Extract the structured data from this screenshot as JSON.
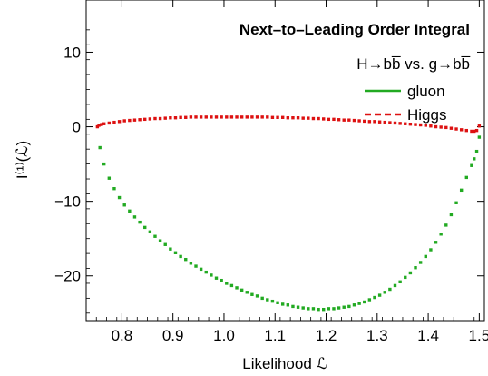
{
  "chart_data": {
    "type": "scatter",
    "title": "Next–to–Leading Order Integral",
    "legend_title": "H→bb̅ vs. g→bb̅",
    "legend_placement": "top-right",
    "xlabel": "Likelihood ℒ",
    "ylabel": "I⁽¹⁾(ℒ)",
    "xlim": [
      0.73,
      1.51
    ],
    "ylim": [
      -26,
      17
    ],
    "x_ticks": [
      "0.8",
      "0.9",
      "1.0",
      "1.1",
      "1.2",
      "1.3",
      "1.4",
      "1.5"
    ],
    "y_ticks": [
      "10",
      "0",
      "−10",
      "−20"
    ],
    "grid": false,
    "series": [
      {
        "name": "gluon",
        "color": "#22aa22",
        "x": [
          0.757,
          0.765,
          0.775,
          0.785,
          0.795,
          0.805,
          0.815,
          0.825,
          0.835,
          0.845,
          0.855,
          0.865,
          0.875,
          0.885,
          0.895,
          0.905,
          0.915,
          0.925,
          0.935,
          0.945,
          0.955,
          0.965,
          0.975,
          0.985,
          0.995,
          1.005,
          1.015,
          1.025,
          1.035,
          1.045,
          1.055,
          1.065,
          1.075,
          1.085,
          1.095,
          1.105,
          1.115,
          1.125,
          1.135,
          1.145,
          1.155,
          1.165,
          1.175,
          1.185,
          1.195,
          1.205,
          1.215,
          1.225,
          1.235,
          1.245,
          1.255,
          1.265,
          1.275,
          1.285,
          1.295,
          1.305,
          1.315,
          1.325,
          1.335,
          1.345,
          1.355,
          1.365,
          1.375,
          1.385,
          1.395,
          1.405,
          1.415,
          1.425,
          1.435,
          1.445,
          1.455,
          1.465,
          1.475,
          1.485,
          1.49,
          1.495,
          1.5
        ],
        "y": [
          -2.8,
          -5.0,
          -6.9,
          -8.3,
          -9.5,
          -10.5,
          -11.3,
          -12.1,
          -12.8,
          -13.5,
          -14.1,
          -14.7,
          -15.3,
          -15.8,
          -16.4,
          -16.9,
          -17.4,
          -17.8,
          -18.3,
          -18.7,
          -19.1,
          -19.5,
          -19.9,
          -20.3,
          -20.6,
          -21.0,
          -21.3,
          -21.6,
          -21.9,
          -22.2,
          -22.5,
          -22.7,
          -23.0,
          -23.2,
          -23.4,
          -23.6,
          -23.8,
          -23.9,
          -24.1,
          -24.2,
          -24.3,
          -24.4,
          -24.4,
          -24.5,
          -24.5,
          -24.4,
          -24.4,
          -24.3,
          -24.2,
          -24.1,
          -23.9,
          -23.7,
          -23.5,
          -23.2,
          -22.9,
          -22.6,
          -22.2,
          -21.8,
          -21.3,
          -20.8,
          -20.2,
          -19.6,
          -18.9,
          -18.2,
          -17.4,
          -16.5,
          -15.5,
          -14.4,
          -13.2,
          -11.8,
          -10.2,
          -8.5,
          -6.8,
          -5.2,
          -4.3,
          -3.3,
          -1.4
        ]
      },
      {
        "name": "Higgs",
        "color": "#dd1111",
        "x": [
          0.752,
          0.755,
          0.76,
          0.765,
          0.775,
          0.785,
          0.795,
          0.805,
          0.815,
          0.825,
          0.835,
          0.845,
          0.855,
          0.865,
          0.875,
          0.885,
          0.895,
          0.905,
          0.915,
          0.925,
          0.935,
          0.945,
          0.955,
          0.965,
          0.975,
          0.985,
          0.995,
          1.005,
          1.015,
          1.025,
          1.035,
          1.045,
          1.055,
          1.065,
          1.075,
          1.085,
          1.095,
          1.105,
          1.115,
          1.125,
          1.135,
          1.145,
          1.155,
          1.165,
          1.175,
          1.185,
          1.195,
          1.205,
          1.215,
          1.225,
          1.235,
          1.245,
          1.255,
          1.265,
          1.275,
          1.285,
          1.295,
          1.305,
          1.315,
          1.325,
          1.335,
          1.345,
          1.355,
          1.365,
          1.375,
          1.385,
          1.395,
          1.405,
          1.415,
          1.425,
          1.435,
          1.445,
          1.455,
          1.465,
          1.475,
          1.485,
          1.49,
          1.495,
          1.5
        ],
        "y": [
          0.0,
          0.2,
          0.3,
          0.4,
          0.5,
          0.6,
          0.7,
          0.8,
          0.85,
          0.9,
          0.95,
          1.0,
          1.05,
          1.1,
          1.1,
          1.15,
          1.2,
          1.2,
          1.25,
          1.25,
          1.3,
          1.3,
          1.3,
          1.3,
          1.3,
          1.3,
          1.3,
          1.3,
          1.3,
          1.3,
          1.3,
          1.3,
          1.3,
          1.3,
          1.3,
          1.3,
          1.25,
          1.25,
          1.25,
          1.2,
          1.2,
          1.2,
          1.15,
          1.15,
          1.1,
          1.1,
          1.05,
          1.0,
          1.0,
          0.95,
          0.9,
          0.9,
          0.85,
          0.8,
          0.75,
          0.7,
          0.7,
          0.65,
          0.6,
          0.55,
          0.5,
          0.45,
          0.4,
          0.35,
          0.3,
          0.25,
          0.2,
          0.1,
          0.0,
          -0.05,
          -0.1,
          -0.2,
          -0.3,
          -0.4,
          -0.5,
          -0.6,
          -0.6,
          -0.5,
          0.1
        ]
      }
    ]
  }
}
